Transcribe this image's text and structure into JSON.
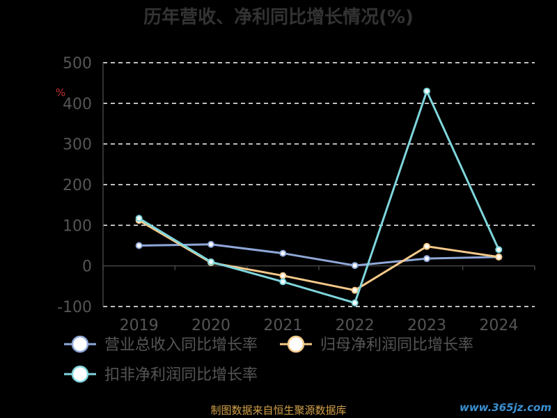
{
  "chart_data": {
    "type": "line",
    "title": "历年营收、净利同比增长情况(%)",
    "ylabel": "%",
    "ylim": [
      -100,
      500
    ],
    "yticks": [
      -100,
      0,
      100,
      200,
      300,
      400,
      500
    ],
    "x": [
      "2019",
      "2020",
      "2021",
      "2022",
      "2023",
      "2024"
    ],
    "grid": true,
    "legend_position": "bottom-left",
    "series": [
      {
        "name": "营业总收入同比增长率",
        "color": "#8fa8d8",
        "values": [
          50,
          53,
          31,
          1,
          18,
          22
        ]
      },
      {
        "name": "归母净利润同比增长率",
        "color": "#f5c98a",
        "values": [
          112,
          8,
          -24,
          -60,
          48,
          22
        ]
      },
      {
        "name": "扣非净利润同比增长率",
        "color": "#7fd6dc",
        "values": [
          117,
          10,
          -39,
          -91,
          430,
          40
        ]
      }
    ]
  },
  "footer": "制图数据来自恒生聚源数据库",
  "watermark": "www.365jz.com",
  "colors": {
    "background": "#000000",
    "axis_text": "#555555",
    "grid": "#ffffff",
    "title": "#333333",
    "ylabel": "#c03030",
    "footer": "#d4a24a",
    "watermark": "#3a8fd0"
  }
}
